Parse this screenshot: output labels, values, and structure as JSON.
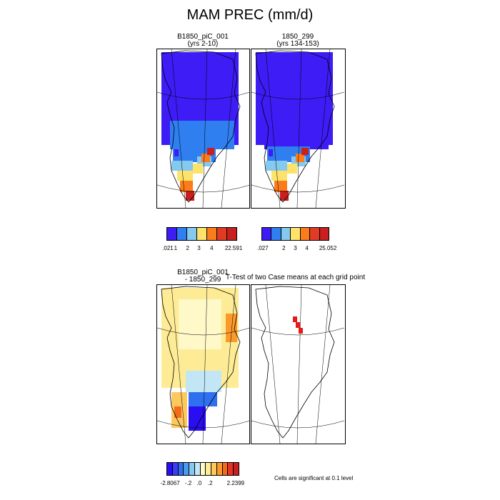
{
  "figure": {
    "title": "MAM PREC (mm/d)"
  },
  "panels": {
    "control": {
      "title_line1": "B1850_piC_001",
      "title_line2": "(yrs 2-10)"
    },
    "test": {
      "title_line1": "1850_299",
      "title_line2": "(yrs 134-153)"
    },
    "difference": {
      "title_line1": "B1850_piC_001",
      "title_line2": "- 1850_299"
    },
    "ttest": {
      "title": "T-Test of two Case means at each grid point",
      "note": "Cells are significant at 0.1 level"
    }
  },
  "colorbars": {
    "control": {
      "colors": [
        "#3d1cf5",
        "#2f7ff0",
        "#85c9ef",
        "#fde36a",
        "#fb7c1b",
        "#e23b25",
        "#c81f1f"
      ],
      "labels": [
        ".021",
        "1",
        "2",
        "3",
        "4",
        "22.591"
      ]
    },
    "test": {
      "colors": [
        "#3d1cf5",
        "#2f7ff0",
        "#85c9ef",
        "#fde36a",
        "#fb7c1b",
        "#e23b25",
        "#c81f1f"
      ],
      "labels": [
        ".027",
        "2",
        "3",
        "4",
        "25.052"
      ]
    },
    "difference": {
      "colors": [
        "#2a0ef2",
        "#3d3cf5",
        "#2f70f0",
        "#4a9bf0",
        "#85c9ef",
        "#c2e6f6",
        "#fff8c8",
        "#fdeb96",
        "#fdc95e",
        "#fb9a2a",
        "#f56a1a",
        "#e53325",
        "#c81f1f"
      ],
      "labels": [
        "-2.8067",
        "-.2",
        ".0",
        ".2",
        "2.2399"
      ]
    }
  }
}
